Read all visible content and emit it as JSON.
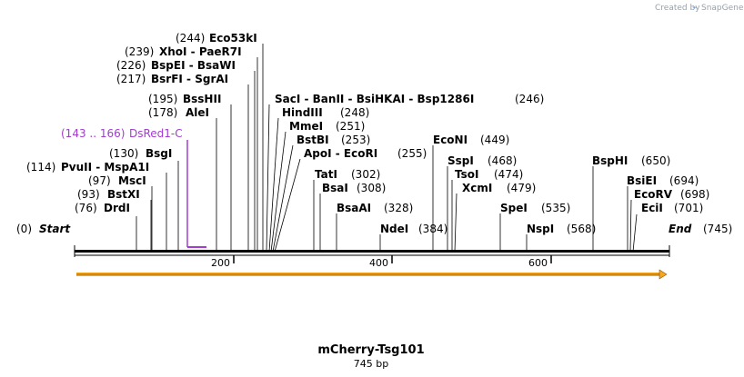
{
  "credit": {
    "prefix": "Created by",
    "brand": "SnapGene"
  },
  "plasmid": {
    "name": "mCherry-Tsg101",
    "length": "745 bp"
  },
  "start": {
    "pos": "(0)",
    "label": "Start"
  },
  "end": {
    "label": "End",
    "pos": "(745)"
  },
  "feature": {
    "range": "(143 .. 166)",
    "name": "DsRed1-C",
    "color": "#a23ccf"
  },
  "ruler": [
    "200",
    "400",
    "600"
  ],
  "sites": [
    {
      "pos": "(244)",
      "names": "Eco53kI"
    },
    {
      "pos": "(239)",
      "names": "XhoI - PaeR7I"
    },
    {
      "pos": "(226)",
      "names": "BspEI - BsaWI"
    },
    {
      "pos": "(217)",
      "names": "BsrFI - SgrAI"
    },
    {
      "pos": "(195)",
      "names": "BssHII"
    },
    {
      "pos": "(178)",
      "names": "AleI"
    },
    {
      "pos": "(130)",
      "names": "BsgI"
    },
    {
      "pos": "(114)",
      "names": "PvuII - MspA1I"
    },
    {
      "pos": "(97)",
      "names": "MscI"
    },
    {
      "pos": "(93)",
      "names": "BstXI"
    },
    {
      "pos": "(76)",
      "names": "DrdI"
    },
    {
      "pos": "(246)",
      "names": "SacI - BanII - BsiHKAI - Bsp1286I"
    },
    {
      "pos": "(248)",
      "names": "HindIII"
    },
    {
      "pos": "(251)",
      "names": "MmeI"
    },
    {
      "pos": "(253)",
      "names": "BstBI"
    },
    {
      "pos": "(255)",
      "names": "ApoI - EcoRI"
    },
    {
      "pos": "(302)",
      "names": "TatI"
    },
    {
      "pos": "(308)",
      "names": "BsaI"
    },
    {
      "pos": "(328)",
      "names": "BsaAI"
    },
    {
      "pos": "(384)",
      "names": "NdeI"
    },
    {
      "pos": "(449)",
      "names": "EcoNI"
    },
    {
      "pos": "(468)",
      "names": "SspI"
    },
    {
      "pos": "(474)",
      "names": "TsoI"
    },
    {
      "pos": "(479)",
      "names": "XcmI"
    },
    {
      "pos": "(535)",
      "names": "SpeI"
    },
    {
      "pos": "(568)",
      "names": "NspI"
    },
    {
      "pos": "(650)",
      "names": "BspHI"
    },
    {
      "pos": "(694)",
      "names": "BsiEI"
    },
    {
      "pos": "(698)",
      "names": "EcoRV"
    },
    {
      "pos": "(701)",
      "names": "EciI"
    }
  ],
  "colors": {
    "arrow": "#f5a623",
    "feature": "#a23ccf",
    "line": "#000000"
  }
}
